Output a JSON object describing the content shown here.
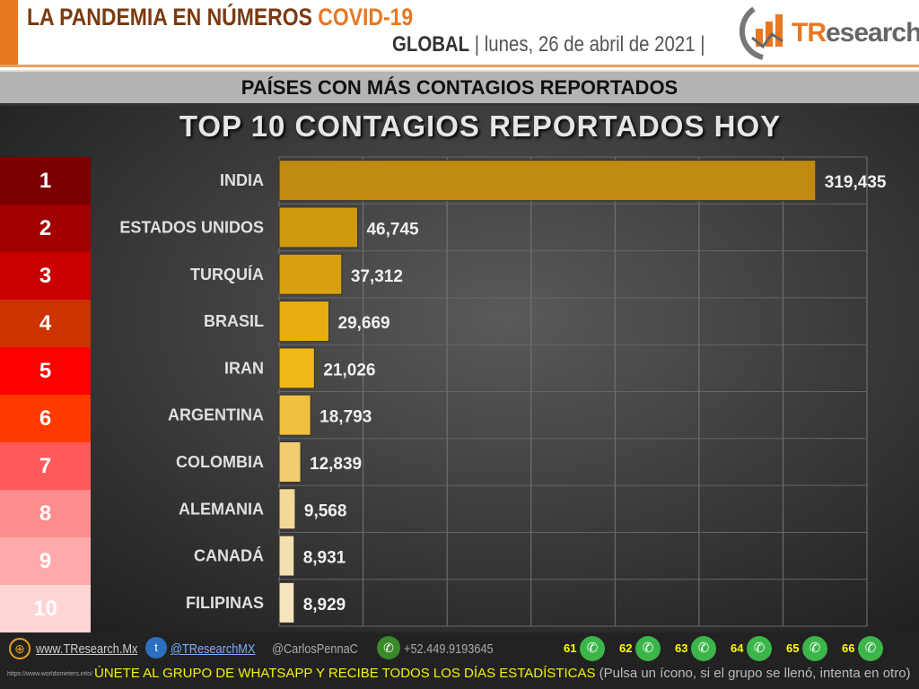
{
  "header": {
    "title_main": "LA PANDEMIA EN NÚMEROS",
    "title_accent": "COVID-19",
    "scope": "GLOBAL",
    "date": "| lunes, 26 de abril de 2021 |",
    "logo_text_accent": "TR",
    "logo_text": "esearch"
  },
  "band_title": "PAÍSES CON MÁS CONTAGIOS REPORTADOS",
  "chart_data": {
    "type": "bar",
    "orientation": "horizontal",
    "title": "TOP 10 CONTAGIOS REPORTADOS HOY",
    "ranks": [
      "1",
      "2",
      "3",
      "4",
      "5",
      "6",
      "7",
      "8",
      "9",
      "10"
    ],
    "rank_colors": [
      "#7a0000",
      "#a30000",
      "#c80000",
      "#cc3300",
      "#ff0000",
      "#ff3a00",
      "#ff5a5a",
      "#ff8c8c",
      "#ffaaaa",
      "#ffd4d4"
    ],
    "categories": [
      "INDIA",
      "ESTADOS UNIDOS",
      "TURQUÍA",
      "BRASIL",
      "IRAN",
      "ARGENTINA",
      "COLOMBIA",
      "ALEMANIA",
      "CANADÁ",
      "FILIPINAS"
    ],
    "values": [
      319435,
      46745,
      37312,
      29669,
      21026,
      18793,
      12839,
      9568,
      8931,
      8929
    ],
    "labels": [
      "319,435",
      "46,745",
      "37,312",
      "29,669",
      "21,026",
      "18,793",
      "12,839",
      "9,568",
      "8,931",
      "8,929"
    ],
    "xlim": [
      0,
      350000
    ],
    "grid": true
  },
  "footer": {
    "web": "www.TResearch.Mx",
    "twitter": "@TResearchMX",
    "handle": "@CarlosPennaC",
    "phone": "+52.449.9193645",
    "small_url": "https://www.worldometers.info/",
    "groups": [
      "61",
      "62",
      "63",
      "64",
      "65",
      "66"
    ],
    "join": "ÚNETE AL GRUPO DE WHATSAPP Y RECIBE TODOS LOS DÍAS ESTADÍSTICAS",
    "join_note": "(Pulsa un ícono, si el grupo se llenó, intenta en otro)"
  }
}
